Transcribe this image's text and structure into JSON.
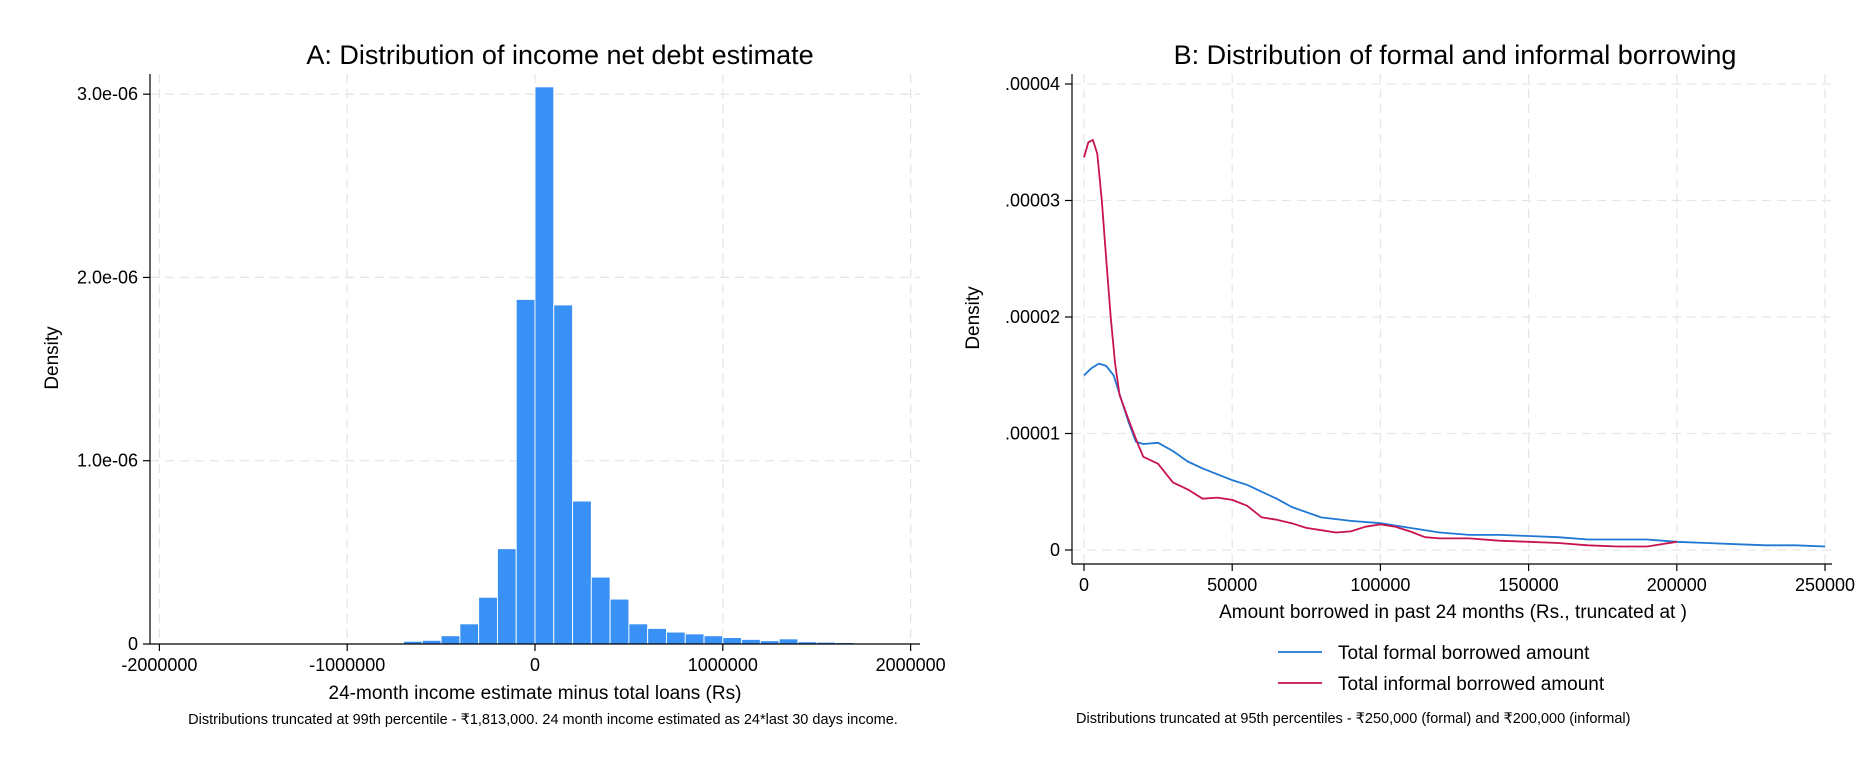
{
  "chart_data": [
    {
      "type": "bar",
      "title": "A: Distribution of income net debt estimate",
      "xlabel": "24-month income estimate minus total loans (Rs)",
      "ylabel": "Density",
      "note": "Distributions truncated at 99th percentile - ₹1,813,000. 24 month income estimated as 24*last 30 days income.",
      "xlim": [
        -2050000,
        2050000
      ],
      "ylim": [
        0,
        3.05e-06
      ],
      "x_ticks": [
        -2000000,
        -1000000,
        0,
        1000000,
        2000000
      ],
      "x_tick_labels": [
        "-2000000",
        "-1000000",
        "0",
        "1000000",
        "2000000"
      ],
      "y_ticks": [
        0,
        1e-06,
        2e-06,
        3e-06
      ],
      "y_tick_labels": [
        "0",
        "1.0e-06",
        "2.0e-06",
        "3.0e-06"
      ],
      "grid": true,
      "bin_width": 100000,
      "bins_start": [
        -2000000,
        -1000000,
        -700000,
        -600000,
        -500000,
        -400000,
        -300000,
        -200000,
        -100000,
        0,
        100000,
        200000,
        300000,
        400000,
        500000,
        600000,
        700000,
        800000,
        900000,
        1000000,
        1100000,
        1200000,
        1300000,
        1400000,
        1500000,
        1600000,
        1700000
      ],
      "values": [
        1.5e-09,
        3e-09,
        1.5e-08,
        2e-08,
        4.5e-08,
        1.1e-07,
        2.55e-07,
        5.2e-07,
        1.88e-06,
        3.04e-06,
        1.85e-06,
        7.8e-07,
        3.65e-07,
        2.45e-07,
        1.1e-07,
        8.5e-08,
        6.5e-08,
        5.5e-08,
        4.5e-08,
        3.5e-08,
        2.5e-08,
        1.8e-08,
        2.8e-08,
        1.2e-08,
        1e-08,
        8e-09,
        5e-09
      ]
    },
    {
      "type": "line",
      "title": "B: Distribution of formal and informal borrowing",
      "xlabel": "Amount borrowed in past 24 months (Rs., truncated at )",
      "ylabel": "Density",
      "note": "Distributions truncated at 95th percentiles - ₹250,000 (formal) and ₹200,000 (informal)",
      "xlim": [
        -5000,
        255000
      ],
      "ylim": [
        0,
        4e-05
      ],
      "x_ticks": [
        0,
        50000,
        100000,
        150000,
        200000,
        250000
      ],
      "x_tick_labels": [
        "0",
        "50000",
        "100000",
        "150000",
        "200000",
        "250000"
      ],
      "y_ticks": [
        0,
        1e-05,
        2e-05,
        3e-05,
        4e-05
      ],
      "y_tick_labels": [
        "0",
        ".00001",
        ".00002",
        ".00003",
        ".00004"
      ],
      "grid": true,
      "legend_position": "bottom",
      "series": [
        {
          "name": "Total formal borrowed amount",
          "color": "#1f78d4",
          "x": [
            0,
            2500,
            5000,
            7500,
            10000,
            12500,
            15000,
            17500,
            20000,
            25000,
            30000,
            35000,
            40000,
            45000,
            50000,
            55000,
            60000,
            65000,
            70000,
            80000,
            90000,
            100000,
            110000,
            120000,
            130000,
            140000,
            150000,
            160000,
            170000,
            180000,
            190000,
            200000,
            210000,
            220000,
            230000,
            240000,
            250000
          ],
          "y": [
            1.5e-05,
            1.56e-05,
            1.6e-05,
            1.58e-05,
            1.5e-05,
            1.3e-05,
            1.1e-05,
            9.3e-06,
            9.1e-06,
            9.2e-06,
            8.5e-06,
            7.6e-06,
            7e-06,
            6.5e-06,
            6e-06,
            5.6e-06,
            5e-06,
            4.4e-06,
            3.7e-06,
            2.8e-06,
            2.5e-06,
            2.3e-06,
            1.9e-06,
            1.5e-06,
            1.3e-06,
            1.3e-06,
            1.2e-06,
            1.1e-06,
            9e-07,
            9e-07,
            9e-07,
            7e-07,
            6e-07,
            5e-07,
            4e-07,
            4e-07,
            3e-07
          ]
        },
        {
          "name": "Total informal borrowed amount",
          "color": "#c7134e",
          "x": [
            0,
            1500,
            3000,
            4500,
            6000,
            7500,
            9000,
            10500,
            12000,
            15000,
            18000,
            20000,
            25000,
            30000,
            35000,
            40000,
            45000,
            50000,
            55000,
            60000,
            65000,
            70000,
            75000,
            80000,
            85000,
            90000,
            95000,
            100000,
            105000,
            110000,
            115000,
            120000,
            130000,
            140000,
            150000,
            160000,
            170000,
            180000,
            190000,
            200000
          ],
          "y": [
            3.37e-05,
            3.5e-05,
            3.52e-05,
            3.4e-05,
            3e-05,
            2.5e-05,
            2e-05,
            1.6e-05,
            1.33e-05,
            1.12e-05,
            9.2e-06,
            8e-06,
            7.4e-06,
            5.8e-06,
            5.2e-06,
            4.4e-06,
            4.5e-06,
            4.3e-06,
            3.8e-06,
            2.8e-06,
            2.6e-06,
            2.3e-06,
            1.9e-06,
            1.7e-06,
            1.5e-06,
            1.6e-06,
            2e-06,
            2.2e-06,
            2e-06,
            1.6e-06,
            1.1e-06,
            1e-06,
            1e-06,
            8e-07,
            7e-07,
            6e-07,
            4e-07,
            3e-07,
            3e-07,
            7e-07
          ]
        }
      ]
    }
  ]
}
